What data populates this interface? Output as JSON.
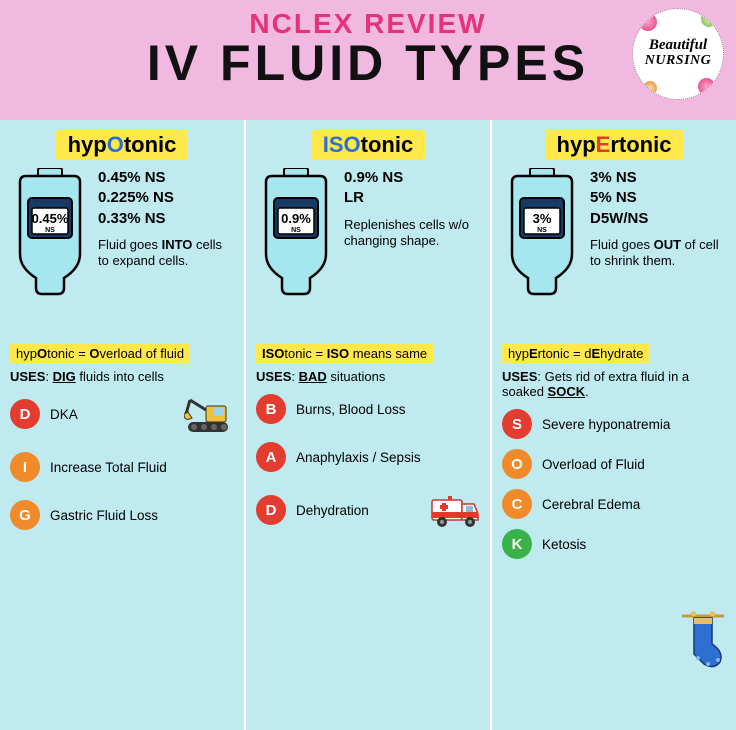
{
  "colors": {
    "header_bg": "#f2b9e0",
    "subtitle": "#e6317b",
    "title": "#111111",
    "col_bg": "#bfeaf0",
    "label_bg": "#ffe94a",
    "bag_fill": "#a6e6ee",
    "bag_stroke": "#000000",
    "accent_blue": "#2e6fd4",
    "accent_red": "#e53a2a",
    "circle_red": "#e43c2e",
    "circle_orange": "#f08a2a",
    "circle_green": "#39b24a",
    "text": "#1a1a1a"
  },
  "header": {
    "subtitle": "NCLEX REVIEW",
    "title": "IV FLUID TYPES",
    "logo_line1": "Beautiful",
    "logo_line2": "NURSING"
  },
  "columns": [
    {
      "title_pre": "hyp",
      "title_em": "O",
      "title_post": "tonic",
      "em_color": "#2e6fd4",
      "bag_pct": "0.45%",
      "bag_sub": "NS",
      "solutions": [
        "0.45% NS",
        "0.225% NS",
        "0.33% NS"
      ],
      "desc_html": "Fluid goes <b>INTO</b> cells to expand cells.",
      "mnemonic_html": "hyp<b>O</b>tonic = <b>O</b>verload of fluid",
      "uses_html": "<b>USES</b>: <strong>DIG</strong> fluids into cells",
      "bullets": [
        {
          "letter": "D",
          "color": "circle_red",
          "text": "DKA",
          "icon": "excavator"
        },
        {
          "letter": "I",
          "color": "circle_orange",
          "text": "Increase Total Fluid"
        },
        {
          "letter": "G",
          "color": "circle_orange",
          "text": "Gastric Fluid Loss"
        }
      ]
    },
    {
      "title_pre": "",
      "title_em": "ISO",
      "title_post": "tonic",
      "em_color": "#2e6fd4",
      "bag_pct": "0.9%",
      "bag_sub": "NS",
      "solutions": [
        "0.9% NS",
        "LR"
      ],
      "desc_html": "Replenishes cells w/o changing shape.",
      "mnemonic_html": "<b>ISO</b>tonic = <b>ISO</b> means same",
      "uses_html": "<b>USES</b>: <strong>BAD</strong> situations",
      "bullets": [
        {
          "letter": "B",
          "color": "circle_red",
          "text": "Burns, Blood Loss"
        },
        {
          "letter": "A",
          "color": "circle_red",
          "text": "Anaphylaxis / Sepsis"
        },
        {
          "letter": "D",
          "color": "circle_red",
          "text": "Dehydration",
          "icon": "ambulance"
        }
      ]
    },
    {
      "title_pre": "hyp",
      "title_em": "E",
      "title_post": "rtonic",
      "em_color": "#e53a2a",
      "bag_pct": "3%",
      "bag_sub": "NS",
      "solutions": [
        "3% NS",
        "5% NS",
        "D5W/NS"
      ],
      "desc_html": "Fluid goes <b>OUT</b> of cell to shrink them.",
      "mnemonic_html": "hyp<b>E</b>rtonic = d<b>E</b>hydrate",
      "uses_html": "<b>USES</b>: Gets rid of extra fluid in a soaked <strong>SOCK</strong>.",
      "bullets": [
        {
          "letter": "S",
          "color": "circle_red",
          "text": "Severe hyponatremia"
        },
        {
          "letter": "O",
          "color": "circle_orange",
          "text": "Overload of Fluid"
        },
        {
          "letter": "C",
          "color": "circle_orange",
          "text": "Cerebral Edema"
        },
        {
          "letter": "K",
          "color": "circle_green",
          "text": "Ketosis"
        }
      ],
      "corner_icon": "sock"
    }
  ]
}
